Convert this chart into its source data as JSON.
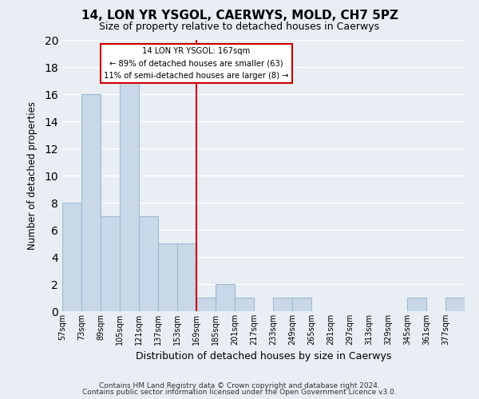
{
  "title": "14, LON YR YSGOL, CAERWYS, MOLD, CH7 5PZ",
  "subtitle": "Size of property relative to detached houses in Caerwys",
  "xlabel": "Distribution of detached houses by size in Caerwys",
  "ylabel": "Number of detached properties",
  "bar_color": "#c8d8e8",
  "bar_edge_color": "#a0b8d0",
  "background_color": "#e8eef4",
  "grid_color": "white",
  "bin_labels": [
    "57sqm",
    "73sqm",
    "89sqm",
    "105sqm",
    "121sqm",
    "137sqm",
    "153sqm",
    "169sqm",
    "185sqm",
    "201sqm",
    "217sqm",
    "233sqm",
    "249sqm",
    "265sqm",
    "281sqm",
    "297sqm",
    "313sqm",
    "329sqm",
    "345sqm",
    "361sqm",
    "377sqm"
  ],
  "bin_edges": [
    57,
    73,
    89,
    105,
    121,
    137,
    153,
    169,
    185,
    201,
    217,
    233,
    249,
    265,
    281,
    297,
    313,
    329,
    345,
    361,
    377,
    393
  ],
  "counts": [
    8,
    16,
    7,
    17,
    7,
    5,
    5,
    1,
    2,
    1,
    0,
    1,
    1,
    0,
    0,
    0,
    0,
    0,
    1,
    0,
    1
  ],
  "property_line_x": 169,
  "ylim": [
    0,
    20
  ],
  "yticks": [
    0,
    2,
    4,
    6,
    8,
    10,
    12,
    14,
    16,
    18,
    20
  ],
  "annotation_title": "14 LON YR YSGOL: 167sqm",
  "annotation_line1": "← 89% of detached houses are smaller (63)",
  "annotation_line2": "11% of semi-detached houses are larger (8) →",
  "annotation_box_color": "white",
  "annotation_box_edge": "#cc0000",
  "property_line_color": "#cc0000",
  "footer_line1": "Contains HM Land Registry data © Crown copyright and database right 2024.",
  "footer_line2": "Contains public sector information licensed under the Open Government Licence v3.0."
}
